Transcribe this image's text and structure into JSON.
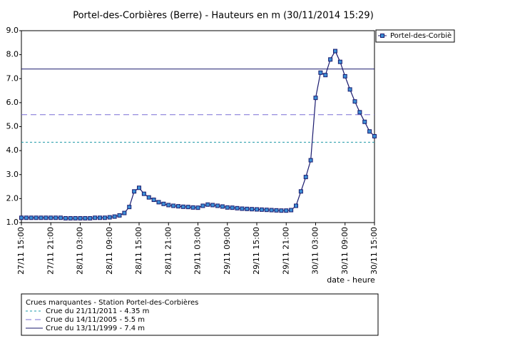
{
  "chart_data": {
    "type": "line",
    "title": "Portel-des-Corbières (Berre) - Hauteurs en m (30/11/2014 15:29)",
    "xlabel": "date - heure",
    "x": [
      "27/11 15:00",
      "27/11 16:00",
      "27/11 17:00",
      "27/11 18:00",
      "27/11 19:00",
      "27/11 20:00",
      "27/11 21:00",
      "27/11 22:00",
      "27/11 23:00",
      "28/11 00:00",
      "28/11 01:00",
      "28/11 02:00",
      "28/11 03:00",
      "28/11 04:00",
      "28/11 05:00",
      "28/11 06:00",
      "28/11 07:00",
      "28/11 08:00",
      "28/11 09:00",
      "28/11 10:00",
      "28/11 11:00",
      "28/11 12:00",
      "28/11 13:00",
      "28/11 14:00",
      "28/11 15:00",
      "28/11 16:00",
      "28/11 17:00",
      "28/11 18:00",
      "28/11 19:00",
      "28/11 20:00",
      "28/11 21:00",
      "28/11 22:00",
      "28/11 23:00",
      "29/11 00:00",
      "29/11 01:00",
      "29/11 02:00",
      "29/11 03:00",
      "29/11 04:00",
      "29/11 05:00",
      "29/11 06:00",
      "29/11 07:00",
      "29/11 08:00",
      "29/11 09:00",
      "29/11 10:00",
      "29/11 11:00",
      "29/11 12:00",
      "29/11 13:00",
      "29/11 14:00",
      "29/11 15:00",
      "29/11 16:00",
      "29/11 17:00",
      "29/11 18:00",
      "29/11 19:00",
      "29/11 20:00",
      "29/11 21:00",
      "29/11 22:00",
      "29/11 23:00",
      "30/11 00:00",
      "30/11 01:00",
      "30/11 02:00",
      "30/11 03:00",
      "30/11 04:00",
      "30/11 05:00",
      "30/11 06:00",
      "30/11 07:00",
      "30/11 08:00",
      "30/11 09:00",
      "30/11 10:00",
      "30/11 11:00",
      "30/11 12:00",
      "30/11 13:00",
      "30/11 14:00",
      "30/11 15:00"
    ],
    "series": [
      {
        "name": "Portel-des-Corbiè",
        "color": "#1a1a6e",
        "marker_color": "#3c8fd6",
        "values": [
          1.2,
          1.2,
          1.2,
          1.2,
          1.2,
          1.2,
          1.2,
          1.2,
          1.2,
          1.18,
          1.18,
          1.18,
          1.18,
          1.18,
          1.18,
          1.2,
          1.2,
          1.2,
          1.22,
          1.25,
          1.3,
          1.4,
          1.65,
          2.3,
          2.45,
          2.2,
          2.05,
          1.95,
          1.85,
          1.78,
          1.73,
          1.7,
          1.68,
          1.66,
          1.65,
          1.63,
          1.62,
          1.7,
          1.75,
          1.73,
          1.7,
          1.67,
          1.63,
          1.62,
          1.6,
          1.58,
          1.57,
          1.56,
          1.55,
          1.54,
          1.53,
          1.52,
          1.51,
          1.5,
          1.5,
          1.52,
          1.7,
          2.3,
          2.9,
          3.6,
          6.2,
          7.25,
          7.15,
          7.8,
          8.15,
          7.7,
          7.1,
          6.55,
          6.05,
          5.6,
          5.2,
          4.8,
          4.6
        ]
      }
    ],
    "xlim": [
      "27/11 15:00",
      "30/11 15:00"
    ],
    "xticks": [
      "27/11 15:00",
      "27/11 21:00",
      "28/11 03:00",
      "28/11 09:00",
      "28/11 15:00",
      "28/11 21:00",
      "29/11 03:00",
      "29/11 09:00",
      "29/11 15:00",
      "29/11 21:00",
      "30/11 03:00",
      "30/11 09:00",
      "30/11 15:00"
    ],
    "ylim": [
      1,
      9
    ],
    "yticks": [
      {
        "value": 1,
        "label": "1.0"
      },
      {
        "value": 2,
        "label": "2.0"
      },
      {
        "value": 3,
        "label": "3.0"
      },
      {
        "value": 4,
        "label": "4.0"
      },
      {
        "value": 5,
        "label": "5.0"
      },
      {
        "value": 6,
        "label": "6.0"
      },
      {
        "value": 7,
        "label": "7.0"
      },
      {
        "value": 8,
        "label": "8.0"
      },
      {
        "value": 9,
        "label": "9.0"
      }
    ],
    "reference_title": "Crues marquantes - Station Portel-des-Corbières",
    "reference_lines": [
      {
        "label": "Crue du 21/11/2011 - 4.35 m",
        "value": 4.35,
        "color": "#1e9aa8",
        "dash": "3,3"
      },
      {
        "label": "Crue du 14/11/2005 - 5.5 m",
        "value": 5.5,
        "color": "#7a6fd6",
        "dash": "8,5"
      },
      {
        "label": "Crue du 13/11/1999 - 7.4 m",
        "value": 7.4,
        "color": "#1a1a6e",
        "dash": "none"
      }
    ]
  }
}
